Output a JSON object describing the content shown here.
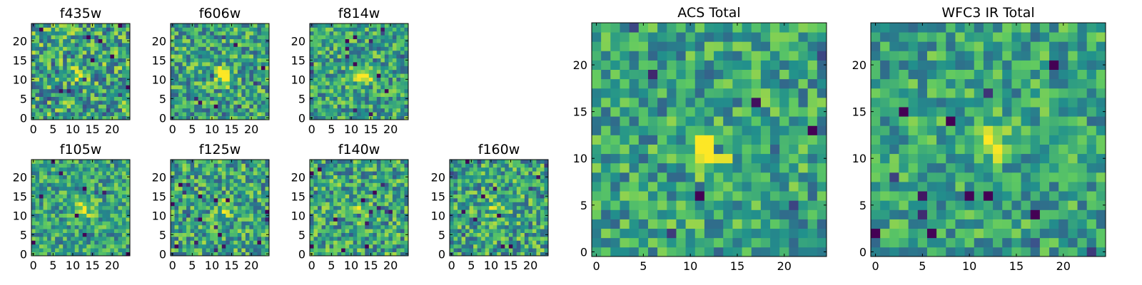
{
  "figure": {
    "background": "#ffffff"
  },
  "colormap": {
    "name": "viridis",
    "stops": [
      "#440154",
      "#3b528b",
      "#21918c",
      "#5ec962",
      "#fde725"
    ]
  },
  "chart_data": [
    {
      "type": "heatmap",
      "title": "f435w",
      "grid": 25,
      "xlim": [
        0,
        25
      ],
      "ylim": [
        0,
        25
      ],
      "xticks": [
        0,
        5,
        10,
        15,
        20
      ],
      "yticks": [
        0,
        5,
        10,
        15,
        20
      ],
      "source_peak": [
        12,
        11
      ],
      "peak_strength": 0.35,
      "noise": 0.34,
      "seed": 11
    },
    {
      "type": "heatmap",
      "title": "f606w",
      "grid": 25,
      "xlim": [
        0,
        25
      ],
      "ylim": [
        0,
        25
      ],
      "xticks": [
        0,
        5,
        10,
        15,
        20
      ],
      "yticks": [
        0,
        5,
        10,
        15,
        20
      ],
      "source_peak": [
        13,
        11
      ],
      "peak_strength": 0.55,
      "noise": 0.3,
      "seed": 23
    },
    {
      "type": "heatmap",
      "title": "f814w",
      "grid": 25,
      "xlim": [
        0,
        25
      ],
      "ylim": [
        0,
        25
      ],
      "xticks": [
        0,
        5,
        10,
        15,
        20
      ],
      "yticks": [
        0,
        5,
        10,
        15,
        20
      ],
      "source_peak": [
        13,
        11
      ],
      "peak_strength": 0.55,
      "noise": 0.28,
      "seed": 37
    },
    {
      "type": "heatmap",
      "title": "f105w",
      "grid": 25,
      "xlim": [
        0,
        25
      ],
      "ylim": [
        0,
        25
      ],
      "xticks": [
        0,
        5,
        10,
        15,
        20
      ],
      "yticks": [
        0,
        5,
        10,
        15,
        20
      ],
      "source_peak": [
        13,
        12
      ],
      "peak_strength": 0.35,
      "noise": 0.26,
      "seed": 41
    },
    {
      "type": "heatmap",
      "title": "f125w",
      "grid": 25,
      "xlim": [
        0,
        25
      ],
      "ylim": [
        0,
        25
      ],
      "xticks": [
        0,
        5,
        10,
        15,
        20
      ],
      "yticks": [
        0,
        5,
        10,
        15,
        20
      ],
      "source_peak": [
        13,
        12
      ],
      "peak_strength": 0.25,
      "noise": 0.3,
      "seed": 53
    },
    {
      "type": "heatmap",
      "title": "f140w",
      "grid": 25,
      "xlim": [
        0,
        25
      ],
      "ylim": [
        0,
        25
      ],
      "xticks": [
        0,
        5,
        10,
        15,
        20
      ],
      "yticks": [
        0,
        5,
        10,
        15,
        20
      ],
      "source_peak": [
        13,
        11
      ],
      "peak_strength": 0.3,
      "noise": 0.3,
      "seed": 67
    },
    {
      "type": "heatmap",
      "title": "f160w",
      "grid": 25,
      "xlim": [
        0,
        25
      ],
      "ylim": [
        0,
        25
      ],
      "xticks": [
        0,
        5,
        10,
        15,
        20
      ],
      "yticks": [
        0,
        5,
        10,
        15,
        20
      ],
      "source_peak": [
        11,
        12
      ],
      "peak_strength": 0.25,
      "noise": 0.3,
      "seed": 79
    },
    {
      "type": "heatmap",
      "title": "ACS Total",
      "grid": 25,
      "xlim": [
        0,
        25
      ],
      "ylim": [
        0,
        25
      ],
      "xticks": [
        0,
        5,
        10,
        15,
        20
      ],
      "yticks": [
        0,
        5,
        10,
        15,
        20
      ],
      "source_peak": [
        12,
        11
      ],
      "peak_strength": 0.55,
      "noise": 0.26,
      "seed": 97
    },
    {
      "type": "heatmap",
      "title": "WFC3 IR Total",
      "grid": 25,
      "xlim": [
        0,
        25
      ],
      "ylim": [
        0,
        25
      ],
      "xticks": [
        0,
        5,
        10,
        15,
        20
      ],
      "yticks": [
        0,
        5,
        10,
        15,
        20
      ],
      "source_peak": [
        12,
        12
      ],
      "peak_strength": 0.4,
      "noise": 0.24,
      "seed": 131
    }
  ]
}
